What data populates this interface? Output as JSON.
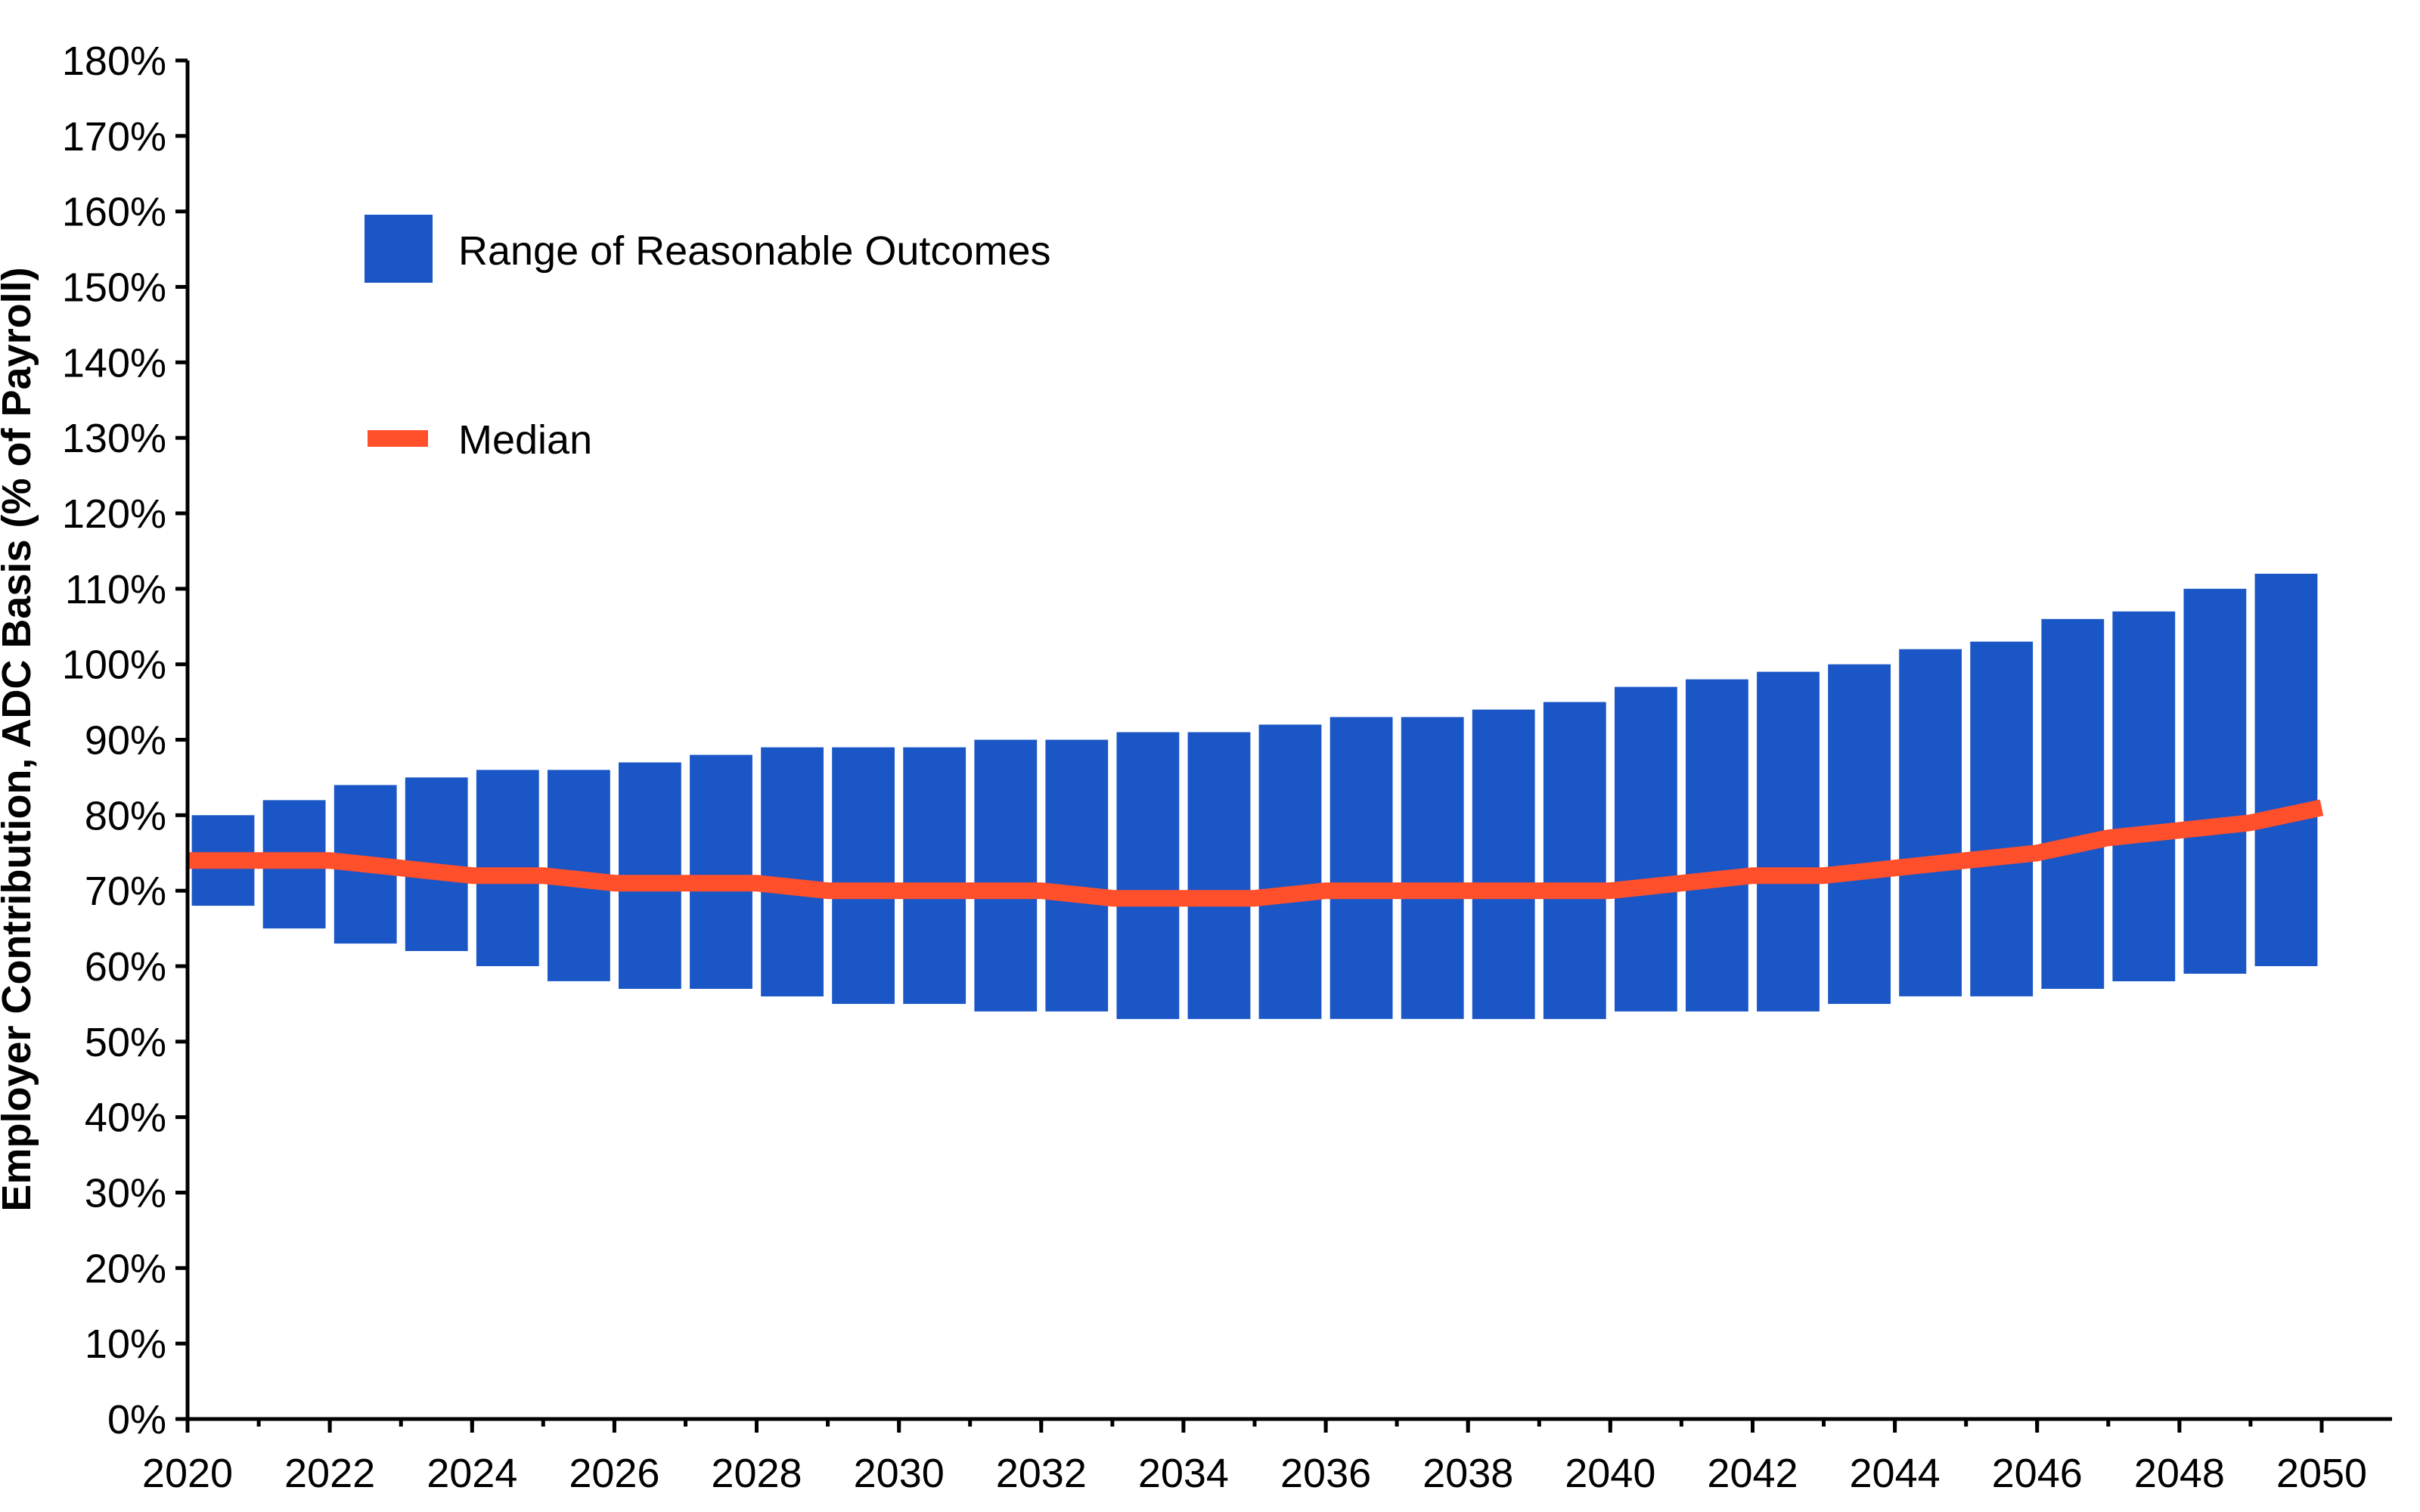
{
  "chart_data": {
    "type": "bar",
    "ylabel": "Employer Contribution, ADC Basis (% of Payroll)",
    "xlabel": "",
    "xlim": [
      2020,
      2050
    ],
    "ylim": [
      0,
      180
    ],
    "y_ticks": [
      0,
      10,
      20,
      30,
      40,
      50,
      60,
      70,
      80,
      90,
      100,
      110,
      120,
      130,
      140,
      150,
      160,
      170,
      180
    ],
    "y_tick_labels": [
      "0%",
      "10%",
      "20%",
      "30%",
      "40%",
      "50%",
      "60%",
      "70%",
      "80%",
      "90%",
      "100%",
      "110%",
      "120%",
      "130%",
      "140%",
      "150%",
      "160%",
      "170%",
      "180%"
    ],
    "x_ticks": [
      2020,
      2022,
      2024,
      2026,
      2028,
      2030,
      2032,
      2034,
      2036,
      2038,
      2040,
      2042,
      2044,
      2046,
      2048,
      2050
    ],
    "x_tick_labels": [
      "2020",
      "2022",
      "2024",
      "2026",
      "2028",
      "2030",
      "2032",
      "2034",
      "2036",
      "2038",
      "2040",
      "2042",
      "2044",
      "2046",
      "2048",
      "2050"
    ],
    "legend": {
      "placement": "top-left",
      "entries": [
        "Range of Reasonable Outcomes",
        "Median"
      ]
    },
    "grid": false,
    "series": [
      {
        "name": "Range of Reasonable Outcomes",
        "kind": "floating-bar",
        "color": "#1a56c6",
        "x": [
          2021,
          2022,
          2023,
          2024,
          2025,
          2026,
          2027,
          2028,
          2029,
          2030,
          2031,
          2032,
          2033,
          2034,
          2035,
          2036,
          2037,
          2038,
          2039,
          2040,
          2041,
          2042,
          2043,
          2044,
          2045,
          2046,
          2047,
          2048,
          2049,
          2050
        ],
        "low": [
          68,
          65,
          63,
          62,
          60,
          58,
          57,
          57,
          56,
          55,
          55,
          54,
          54,
          53,
          53,
          53,
          53,
          53,
          53,
          53,
          54,
          54,
          54,
          55,
          56,
          56,
          57,
          58,
          59,
          60
        ],
        "high": [
          80,
          82,
          84,
          85,
          86,
          86,
          87,
          88,
          89,
          89,
          89,
          90,
          90,
          91,
          91,
          92,
          93,
          93,
          94,
          95,
          97,
          98,
          99,
          100,
          102,
          103,
          106,
          107,
          110,
          112
        ]
      },
      {
        "name": "Median",
        "kind": "line",
        "color": "#ff4f2b",
        "x": [
          2020,
          2021,
          2022,
          2023,
          2024,
          2025,
          2026,
          2027,
          2028,
          2029,
          2030,
          2031,
          2032,
          2033,
          2034,
          2035,
          2036,
          2037,
          2038,
          2039,
          2040,
          2041,
          2042,
          2043,
          2044,
          2045,
          2046,
          2047,
          2048,
          2049,
          2050
        ],
        "values": [
          74,
          74,
          74,
          73,
          72,
          72,
          71,
          71,
          71,
          70,
          70,
          70,
          70,
          69,
          69,
          69,
          70,
          70,
          70,
          70,
          70,
          71,
          72,
          72,
          73,
          74,
          75,
          77,
          78,
          79,
          81
        ]
      }
    ]
  }
}
